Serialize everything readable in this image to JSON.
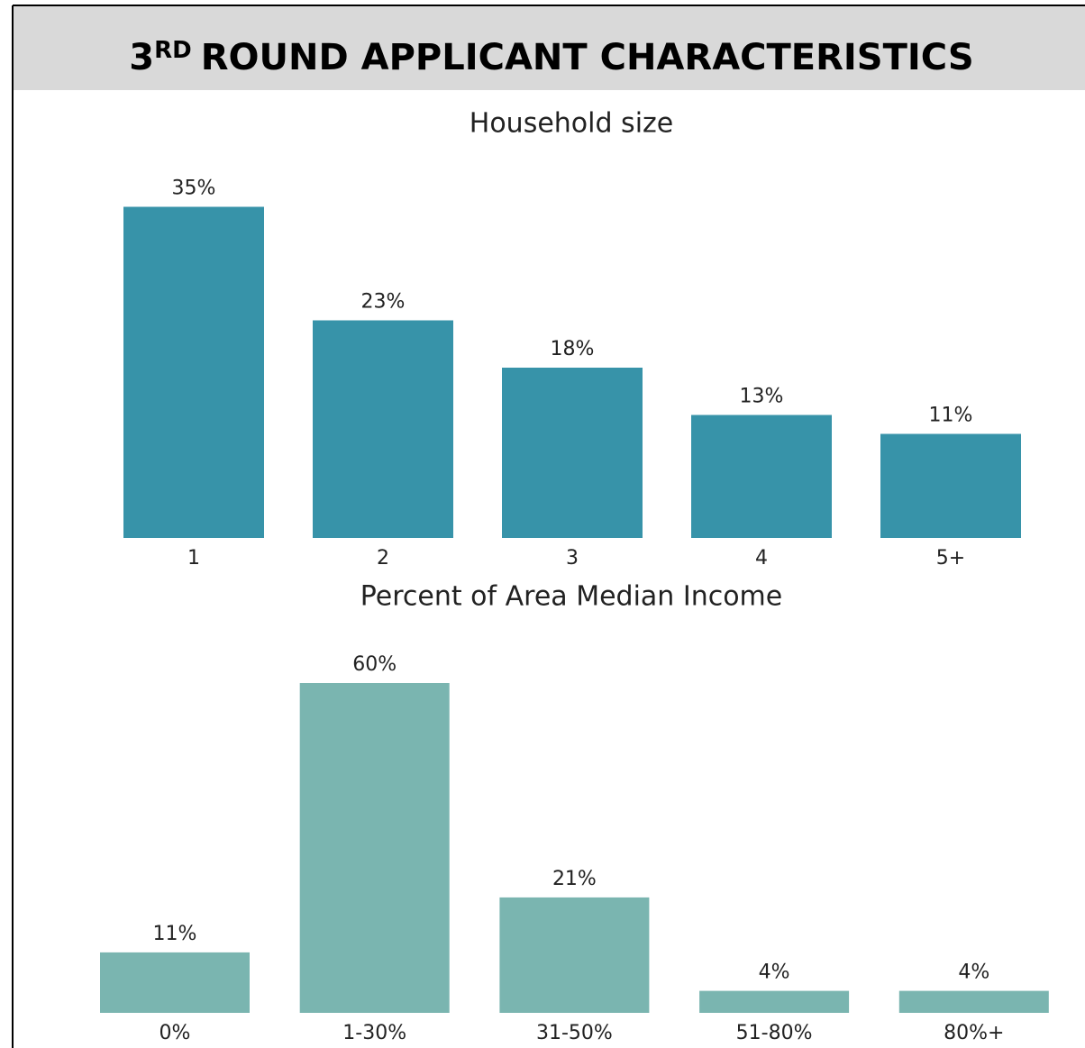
{
  "header": {
    "number": "3",
    "suffix": "RD",
    "rest": "ROUND APPLICANT CHARACTERISTICS"
  },
  "chart_data": [
    {
      "type": "bar",
      "title": "Household size",
      "categories": [
        "1",
        "2",
        "3",
        "4",
        "5+"
      ],
      "values": [
        35,
        23,
        18,
        13,
        11
      ],
      "value_labels": [
        "35%",
        "23%",
        "18%",
        "13%",
        "11%"
      ],
      "color": "#3793a9"
    },
    {
      "type": "bar",
      "title": "Percent of Area Median Income",
      "categories": [
        "0%",
        "1-30%",
        "31-50%",
        "51-80%",
        "80%+"
      ],
      "values": [
        11,
        60,
        21,
        4,
        4
      ],
      "value_labels": [
        "11%",
        "60%",
        "21%",
        "4%",
        "4%"
      ],
      "color": "#7ab5b0"
    }
  ]
}
